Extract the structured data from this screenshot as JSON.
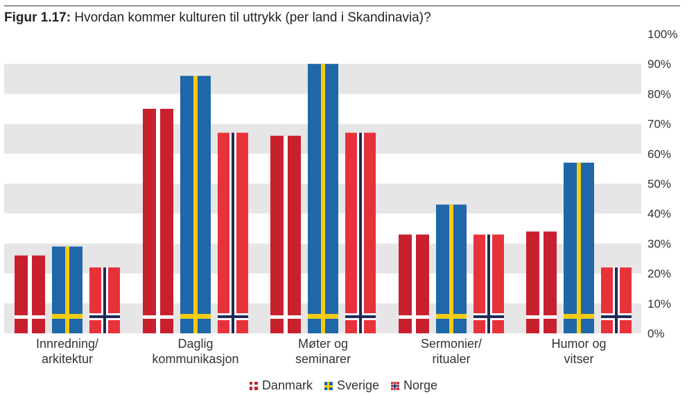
{
  "title": {
    "figure_label": "Figur 1.17:",
    "text": "Hvordan kommer kulturen til uttrykk (per land i Skandinavia)?"
  },
  "chart_data": {
    "type": "bar",
    "categories": [
      [
        "Innredning/",
        "arkitektur"
      ],
      [
        "Daglig",
        "kommunikasjon"
      ],
      [
        "Møter og",
        "seminarer"
      ],
      [
        "Sermonier/",
        "ritualer"
      ],
      [
        "Humor og",
        "vitser"
      ]
    ],
    "series": [
      {
        "name": "Danmark",
        "values": [
          26,
          75,
          66,
          33,
          34
        ]
      },
      {
        "name": "Sverige",
        "values": [
          29,
          86,
          90,
          43,
          57
        ]
      },
      {
        "name": "Norge",
        "values": [
          22,
          67,
          67,
          33,
          22
        ]
      }
    ],
    "ylim": [
      0,
      100
    ],
    "yticks": [
      "0%",
      "10%",
      "20%",
      "30%",
      "40%",
      "50%",
      "60%",
      "70%",
      "80%",
      "90%",
      "100%"
    ],
    "grid": "alternating horizontal bands",
    "legend_position": "bottom-center"
  },
  "colors": {
    "danmark_red": "#c8202f",
    "sverige_blue": "#1f67a8",
    "sverige_yellow": "#f5cc12",
    "norge_red": "#e8323b",
    "norge_blue": "#1d2a5a",
    "band": "#e6e6e6"
  }
}
